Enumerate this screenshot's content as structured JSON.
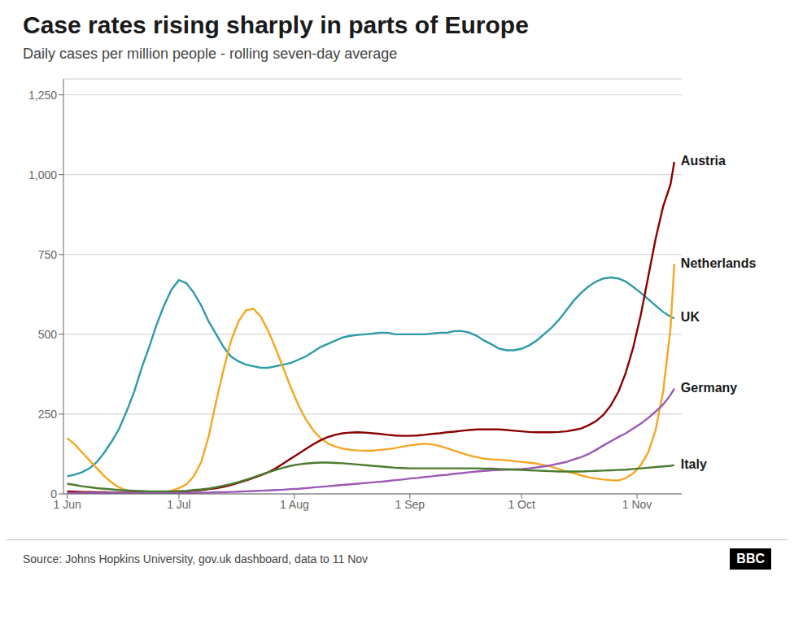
{
  "chart_data": {
    "type": "line",
    "title": "Case rates rising sharply in parts of Europe",
    "subtitle": "Daily cases per million people - rolling seven-day average",
    "annotations": [
      "Source: Johns Hopkins University, gov.uk dashboard, data to 11 Nov",
      "BBC"
    ],
    "grid": true,
    "xlim": [
      -1,
      165
    ],
    "xticks": [
      {
        "value": 0,
        "label": "1 Jun"
      },
      {
        "value": 30,
        "label": "1 Jul"
      },
      {
        "value": 61,
        "label": "1 Aug"
      },
      {
        "value": 92,
        "label": "1 Sep"
      },
      {
        "value": 122,
        "label": "1 Oct"
      },
      {
        "value": 153,
        "label": "1 Nov"
      }
    ],
    "ylim": [
      0,
      1300
    ],
    "yticks": [
      0,
      250,
      500,
      750,
      {
        "value": 1000,
        "label": "1,000"
      },
      {
        "value": 1250,
        "label": "1,250"
      }
    ],
    "x": [
      0,
      2,
      4,
      6,
      8,
      10,
      12,
      14,
      16,
      18,
      20,
      22,
      24,
      26,
      28,
      30,
      32,
      34,
      36,
      38,
      40,
      42,
      44,
      46,
      48,
      50,
      52,
      54,
      56,
      58,
      60,
      62,
      64,
      66,
      68,
      70,
      72,
      74,
      76,
      78,
      80,
      82,
      84,
      86,
      88,
      90,
      92,
      94,
      96,
      98,
      100,
      102,
      104,
      106,
      108,
      110,
      112,
      114,
      116,
      118,
      120,
      122,
      124,
      126,
      128,
      130,
      132,
      134,
      136,
      138,
      140,
      142,
      144,
      146,
      148,
      150,
      152,
      154,
      156,
      158,
      160,
      162,
      163
    ],
    "series": [
      {
        "name": "UK",
        "color": "#2E9BA8",
        "values": [
          55,
          60,
          68,
          80,
          100,
          130,
          165,
          205,
          260,
          320,
          395,
          460,
          530,
          590,
          640,
          670,
          660,
          630,
          590,
          540,
          500,
          460,
          430,
          415,
          405,
          400,
          395,
          395,
          400,
          405,
          410,
          420,
          430,
          445,
          460,
          470,
          480,
          490,
          495,
          498,
          500,
          502,
          505,
          505,
          500,
          500,
          500,
          500,
          500,
          502,
          505,
          505,
          510,
          510,
          505,
          495,
          480,
          468,
          455,
          450,
          450,
          455,
          465,
          480,
          500,
          520,
          545,
          575,
          605,
          630,
          650,
          665,
          675,
          678,
          675,
          665,
          648,
          630,
          610,
          590,
          570,
          555,
          550
        ]
      },
      {
        "name": "Netherlands",
        "color": "#F5A623",
        "values": [
          175,
          155,
          130,
          105,
          80,
          55,
          35,
          20,
          10,
          5,
          3,
          2,
          3,
          5,
          10,
          18,
          30,
          55,
          100,
          180,
          290,
          390,
          480,
          540,
          575,
          580,
          555,
          510,
          455,
          395,
          335,
          280,
          235,
          200,
          175,
          158,
          148,
          142,
          138,
          136,
          135,
          135,
          138,
          140,
          143,
          148,
          152,
          155,
          157,
          155,
          150,
          143,
          135,
          128,
          120,
          115,
          110,
          108,
          107,
          105,
          103,
          100,
          98,
          95,
          90,
          85,
          78,
          70,
          65,
          58,
          52,
          48,
          45,
          43,
          42,
          50,
          65,
          90,
          130,
          200,
          320,
          520,
          720
        ]
      },
      {
        "name": "Austria",
        "color": "#8B0000",
        "values": [
          8,
          7,
          6,
          6,
          5,
          5,
          4,
          4,
          4,
          4,
          4,
          4,
          5,
          5,
          6,
          7,
          8,
          10,
          12,
          15,
          18,
          22,
          28,
          35,
          42,
          50,
          58,
          68,
          80,
          95,
          110,
          125,
          140,
          155,
          168,
          178,
          185,
          190,
          192,
          193,
          192,
          190,
          188,
          185,
          183,
          182,
          182,
          183,
          185,
          188,
          190,
          193,
          195,
          198,
          200,
          202,
          202,
          202,
          202,
          200,
          198,
          196,
          194,
          193,
          193,
          193,
          194,
          196,
          200,
          205,
          215,
          228,
          248,
          278,
          320,
          380,
          460,
          560,
          680,
          800,
          900,
          970,
          1040
        ]
      },
      {
        "name": "Germany",
        "color": "#9B59B6",
        "values": [
          3,
          3,
          3,
          3,
          3,
          3,
          3,
          3,
          3,
          3,
          3,
          3,
          3,
          3,
          3,
          3,
          3,
          3,
          4,
          4,
          5,
          5,
          6,
          7,
          8,
          9,
          10,
          11,
          12,
          13,
          15,
          16,
          18,
          20,
          22,
          24,
          26,
          28,
          30,
          32,
          34,
          36,
          38,
          40,
          43,
          45,
          48,
          50,
          53,
          55,
          58,
          60,
          63,
          65,
          68,
          70,
          72,
          74,
          75,
          76,
          77,
          78,
          80,
          83,
          86,
          90,
          95,
          100,
          108,
          115,
          125,
          138,
          152,
          165,
          178,
          190,
          205,
          220,
          238,
          258,
          280,
          310,
          330
        ]
      },
      {
        "name": "Italy",
        "color": "#4A7C2F",
        "values": [
          32,
          28,
          24,
          21,
          18,
          16,
          14,
          12,
          11,
          10,
          9,
          8,
          8,
          8,
          8,
          9,
          10,
          12,
          14,
          17,
          21,
          26,
          31,
          37,
          44,
          52,
          60,
          68,
          75,
          82,
          88,
          92,
          95,
          97,
          98,
          98,
          97,
          96,
          94,
          92,
          90,
          88,
          86,
          84,
          82,
          81,
          80,
          80,
          80,
          80,
          80,
          80,
          80,
          80,
          80,
          80,
          79,
          79,
          78,
          77,
          76,
          75,
          74,
          73,
          72,
          71,
          70,
          70,
          70,
          70,
          71,
          72,
          73,
          74,
          75,
          76,
          78,
          80,
          82,
          84,
          86,
          88,
          90
        ]
      }
    ]
  }
}
